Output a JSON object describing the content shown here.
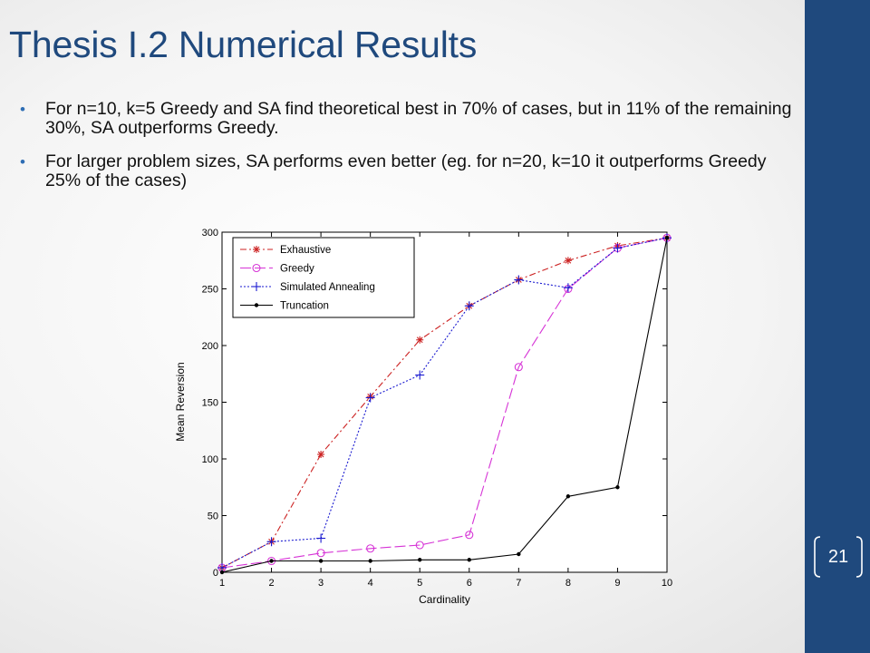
{
  "slide": {
    "title": "Thesis I.2 Numerical Results",
    "bullets": [
      "For n=10, k=5 Greedy and SA find theoretical best in 70% of cases, but in 11% of the remaining 30%, SA outperforms Greedy.",
      "For larger problem sizes, SA performs even better (eg. for n=20, k=10 it outperforms Greedy 25% of the cases)"
    ],
    "page_number": "21",
    "accent_color": "#1f497d"
  },
  "chart_data": {
    "type": "line",
    "title": "",
    "xlabel": "Cardinality",
    "ylabel": "Mean Reversion",
    "xlim": [
      1,
      10
    ],
    "ylim": [
      0,
      300
    ],
    "x": [
      1,
      2,
      3,
      4,
      5,
      6,
      7,
      8,
      9,
      10
    ],
    "x_ticks": [
      1,
      2,
      3,
      4,
      5,
      6,
      7,
      8,
      9,
      10
    ],
    "y_ticks": [
      0,
      50,
      100,
      150,
      200,
      250,
      300
    ],
    "grid": false,
    "legend_position": "top-left",
    "series": [
      {
        "name": "Exhaustive",
        "color": "#cc2222",
        "dash": "dashdot",
        "marker": "star",
        "values": [
          4,
          27,
          104,
          155,
          205,
          235,
          258,
          275,
          288,
          295
        ]
      },
      {
        "name": "Greedy",
        "color": "#d633d6",
        "dash": "longdash",
        "marker": "circle",
        "values": [
          4,
          10,
          17,
          21,
          24,
          33,
          181,
          250,
          286,
          295
        ]
      },
      {
        "name": "Simulated Annealing",
        "color": "#1a1ad0",
        "dash": "dotted",
        "marker": "plus",
        "values": [
          4,
          27,
          30,
          154,
          174,
          235,
          258,
          251,
          286,
          295
        ]
      },
      {
        "name": "Truncation",
        "color": "#000000",
        "dash": "solid",
        "marker": "dot",
        "values": [
          0,
          10,
          10,
          10,
          11,
          11,
          16,
          67,
          75,
          295
        ]
      }
    ]
  }
}
